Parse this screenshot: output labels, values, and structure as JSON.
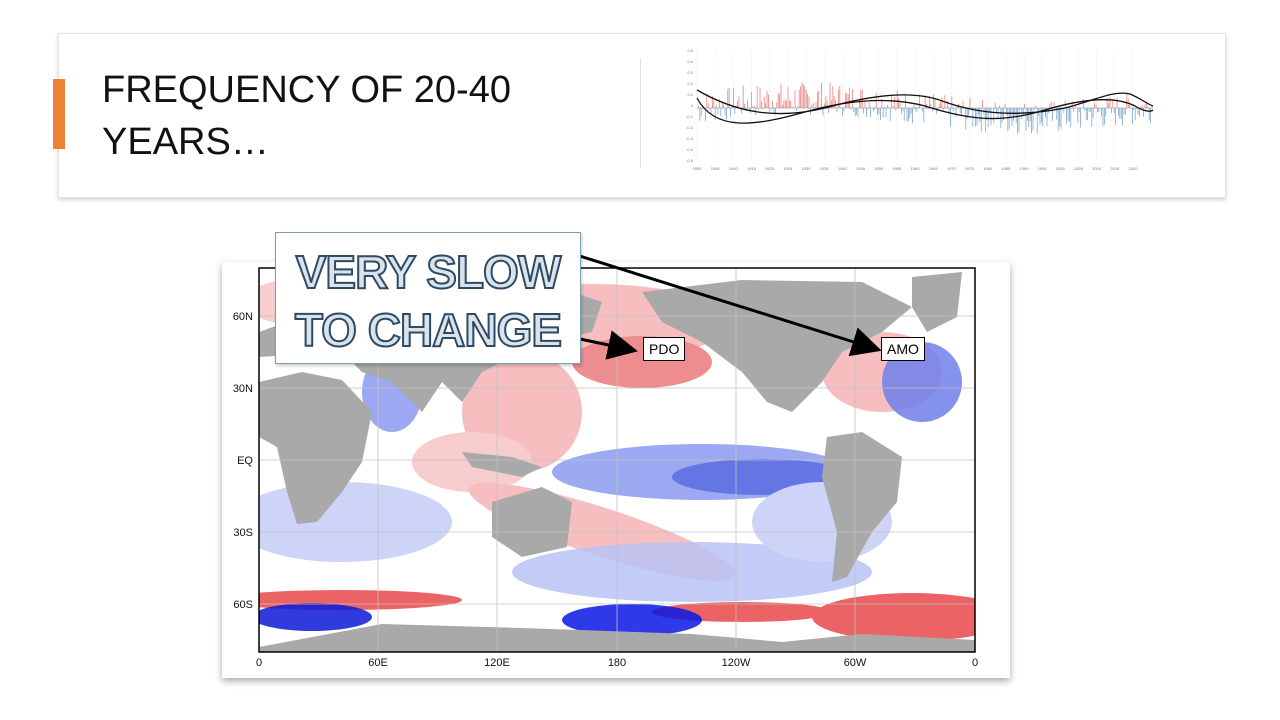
{
  "slide": {
    "title_line1": "FREQUENCY OF 20-40",
    "title_line2": "YEARS…",
    "accent_color": "#ee8132"
  },
  "thumbnail_chart": {
    "type": "line",
    "y_ticks": [
      "0.5",
      "0.4",
      "0.3",
      "0.2",
      "0.1",
      "0",
      "-0.1",
      "-0.2",
      "-0.3",
      "-0.4",
      "-0.5"
    ],
    "x_ticks": [
      "1900",
      "1905",
      "1910",
      "1915",
      "1920",
      "1925",
      "1930",
      "1935",
      "1940",
      "1945",
      "1950",
      "1955",
      "1960",
      "1965",
      "1970",
      "1975",
      "1980",
      "1985",
      "1990",
      "1995",
      "2000",
      "2005",
      "2010",
      "2015",
      "2020"
    ],
    "positive_color": "#f08080",
    "negative_color": "#7fa7d0"
  },
  "map": {
    "lat_labels": [
      "60N",
      "30N",
      "EQ",
      "30S",
      "60S"
    ],
    "lon_labels": [
      "0",
      "60E",
      "120E",
      "180",
      "120W",
      "60W",
      "0"
    ],
    "warm_color": "#e8484a",
    "cool_color": "#4a5ee0",
    "land_color": "#a9a9a9"
  },
  "callout": {
    "line1": "VERY SLOW",
    "line2": "TO CHANGE"
  },
  "labels": {
    "pdo": "PDO",
    "amo": "AMO"
  }
}
